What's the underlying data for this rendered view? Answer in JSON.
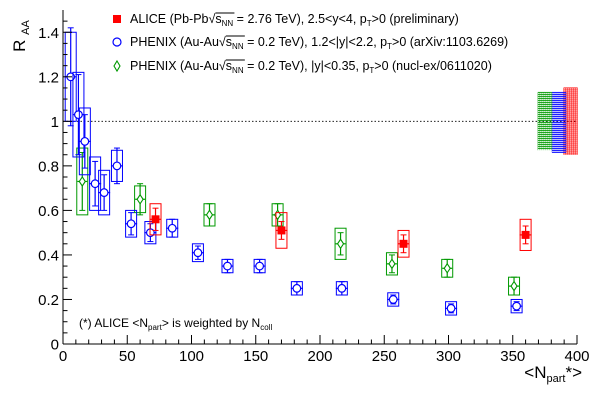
{
  "chart_data": {
    "type": "scatter",
    "title": "",
    "xlabel": "<N_part*>",
    "ylabel": "R_AA",
    "xlim": [
      0,
      400
    ],
    "ylim": [
      0,
      1.5
    ],
    "x_ticks": [
      "0",
      "50",
      "100",
      "150",
      "200",
      "250",
      "300",
      "350",
      "400"
    ],
    "y_ticks": [
      "0",
      "0.2",
      "0.4",
      "0.6",
      "0.8",
      "1",
      "1.2",
      "1.4"
    ],
    "reference_line": 1,
    "legend_placement": "top-right",
    "legend": [
      {
        "pre": "ALICE (Pb-Pb",
        "sqrt": "√",
        "s": "s",
        "s_sub": "NN",
        "post": " = 2.76 TeV), 2.5<y<4, p",
        "p_sub": "T",
        "tail": ">0 (preliminary)",
        "color": "#ff0000",
        "marker": "filled-square"
      },
      {
        "pre": "PHENIX (Au-Au",
        "sqrt": "√",
        "s": "s",
        "s_sub": "NN",
        "post": " = 0.2 TeV), 1.2<|y|<2.2, p",
        "p_sub": "T",
        "tail": ">0 (arXiv:1103.6269)",
        "color": "#0000ff",
        "marker": "open-circle"
      },
      {
        "pre": "PHENIX (Au-Au",
        "sqrt": "√",
        "s": "s",
        "s_sub": "NN",
        "post": " = 0.2 TeV), |y|<0.35, p",
        "p_sub": "T",
        "tail": ">0 (nucl-ex/0611020)",
        "color": "#009900",
        "marker": "open-diamond"
      }
    ],
    "annotation": {
      "a": "(*) ALICE <N",
      "a_sub": "part",
      "b": "> is weighted by N",
      "b_sub": "coll"
    },
    "series": [
      {
        "name": "ALICE (Pb-Pb, 2.5<y<4)",
        "color": "#ff0000",
        "marker": "filled-square",
        "points": [
          {
            "x": 72,
            "y": 0.56,
            "stat": 0.05,
            "sys": 0.07
          },
          {
            "x": 170,
            "y": 0.51,
            "stat": 0.04,
            "sys": 0.08
          },
          {
            "x": 265,
            "y": 0.45,
            "stat": 0.04,
            "sys": 0.06
          },
          {
            "x": 360,
            "y": 0.49,
            "stat": 0.04,
            "sys": 0.07
          }
        ],
        "global_sys": {
          "x": 395,
          "low": 0.85,
          "high": 1.15
        }
      },
      {
        "name": "PHENIX (Au-Au, 1.2<|y|<2.2)",
        "color": "#0000ff",
        "marker": "open-circle",
        "points": [
          {
            "x": 6,
            "y": 1.2,
            "stat": 0.22,
            "sys": 0.2
          },
          {
            "x": 12,
            "y": 1.03,
            "stat": 0.18,
            "sys": 0.19
          },
          {
            "x": 17,
            "y": 0.91,
            "stat": 0.12,
            "sys": 0.15
          },
          {
            "x": 25,
            "y": 0.72,
            "stat": 0.1,
            "sys": 0.12
          },
          {
            "x": 32,
            "y": 0.68,
            "stat": 0.08,
            "sys": 0.1
          },
          {
            "x": 42,
            "y": 0.8,
            "stat": 0.08,
            "sys": 0.07
          },
          {
            "x": 53,
            "y": 0.54,
            "stat": 0.05,
            "sys": 0.06
          },
          {
            "x": 68,
            "y": 0.5,
            "stat": 0.04,
            "sys": 0.05
          },
          {
            "x": 85,
            "y": 0.52,
            "stat": 0.04,
            "sys": 0.04
          },
          {
            "x": 105,
            "y": 0.41,
            "stat": 0.03,
            "sys": 0.04
          },
          {
            "x": 128,
            "y": 0.35,
            "stat": 0.03,
            "sys": 0.03
          },
          {
            "x": 153,
            "y": 0.35,
            "stat": 0.03,
            "sys": 0.03
          },
          {
            "x": 182,
            "y": 0.25,
            "stat": 0.03,
            "sys": 0.03
          },
          {
            "x": 217,
            "y": 0.25,
            "stat": 0.03,
            "sys": 0.03
          },
          {
            "x": 257,
            "y": 0.2,
            "stat": 0.02,
            "sys": 0.03
          },
          {
            "x": 302,
            "y": 0.16,
            "stat": 0.02,
            "sys": 0.03
          },
          {
            "x": 353,
            "y": 0.17,
            "stat": 0.02,
            "sys": 0.03
          }
        ],
        "global_sys": {
          "x": 386,
          "low": 0.86,
          "high": 1.13
        }
      },
      {
        "name": "PHENIX (Au-Au, |y|<0.35)",
        "color": "#009900",
        "marker": "open-diamond",
        "points": [
          {
            "x": 15,
            "y": 0.73,
            "stat": 0.13,
            "sys": 0.15
          },
          {
            "x": 60,
            "y": 0.65,
            "stat": 0.07,
            "sys": 0.06
          },
          {
            "x": 114,
            "y": 0.58,
            "stat": 0.05,
            "sys": 0.05
          },
          {
            "x": 167,
            "y": 0.58,
            "stat": 0.05,
            "sys": 0.05
          },
          {
            "x": 216,
            "y": 0.45,
            "stat": 0.05,
            "sys": 0.07
          },
          {
            "x": 256,
            "y": 0.36,
            "stat": 0.04,
            "sys": 0.05
          },
          {
            "x": 299,
            "y": 0.34,
            "stat": 0.04,
            "sys": 0.04
          },
          {
            "x": 351,
            "y": 0.26,
            "stat": 0.04,
            "sys": 0.04
          }
        ],
        "global_sys": {
          "x": 375,
          "low": 0.87,
          "high": 1.13
        }
      }
    ]
  }
}
